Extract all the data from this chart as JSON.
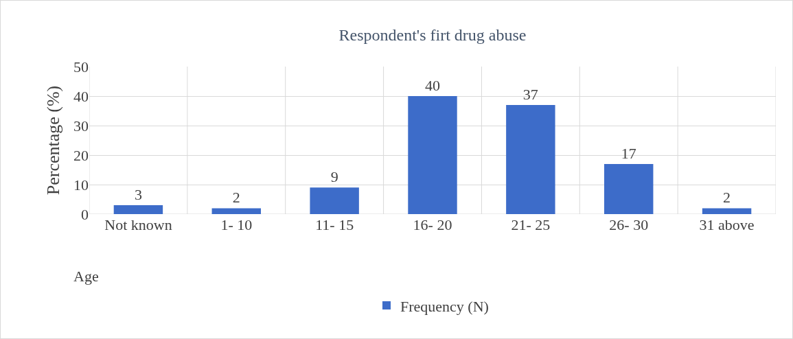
{
  "chart_data": {
    "type": "bar",
    "title": "Respondent's firt drug abuse",
    "xlabel": "Age",
    "ylabel": "Percentage (%)",
    "categories": [
      "Not known",
      "1- 10",
      "11- 15",
      "16- 20",
      "21- 25",
      "26- 30",
      "31 above"
    ],
    "series": [
      {
        "name": "Frequency (N)",
        "color": "#3d6cc9",
        "values": [
          3,
          2,
          9,
          40,
          37,
          17,
          2
        ]
      }
    ],
    "ylim": [
      0,
      50
    ],
    "yticks": [
      0,
      10,
      20,
      30,
      40,
      50
    ],
    "grid": true,
    "legend": "bottom",
    "data_labels": true
  }
}
